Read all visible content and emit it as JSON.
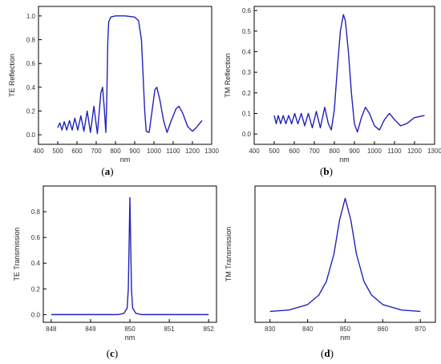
{
  "chart_data": [
    {
      "type": "line",
      "panel_label": "(a)",
      "xlabel": "nm",
      "ylabel": "TE Reflection",
      "xlim": [
        400,
        1300
      ],
      "ylim": [
        -0.08,
        1.08
      ],
      "xticks": [
        400,
        500,
        600,
        700,
        800,
        900,
        1000,
        1100,
        1200,
        1300
      ],
      "yticks": [
        0.0,
        0.2,
        0.4,
        0.6,
        0.8,
        1.0
      ],
      "ytick_labels": [
        "0.0",
        "0.2",
        "0.4",
        "0.6",
        "0.8",
        "1.0"
      ],
      "series": [
        {
          "color": "#2222bb",
          "points": [
            [
              500,
              0.06
            ],
            [
              511,
              0.1
            ],
            [
              522,
              0.04
            ],
            [
              534,
              0.11
            ],
            [
              547,
              0.04
            ],
            [
              561,
              0.12
            ],
            [
              575,
              0.04
            ],
            [
              589,
              0.14
            ],
            [
              604,
              0.04
            ],
            [
              620,
              0.16
            ],
            [
              636,
              0.03
            ],
            [
              653,
              0.2
            ],
            [
              670,
              0.02
            ],
            [
              688,
              0.24
            ],
            [
              706,
              0.01
            ],
            [
              724,
              0.35
            ],
            [
              733,
              0.4
            ],
            [
              742,
              0.22
            ],
            [
              750,
              0.02
            ],
            [
              755,
              0.3
            ],
            [
              760,
              0.78
            ],
            [
              765,
              0.95
            ],
            [
              775,
              0.99
            ],
            [
              800,
              1.0
            ],
            [
              850,
              1.0
            ],
            [
              900,
              0.99
            ],
            [
              920,
              0.96
            ],
            [
              935,
              0.8
            ],
            [
              945,
              0.45
            ],
            [
              952,
              0.2
            ],
            [
              960,
              0.03
            ],
            [
              975,
              0.02
            ],
            [
              990,
              0.2
            ],
            [
              1005,
              0.38
            ],
            [
              1015,
              0.4
            ],
            [
              1030,
              0.3
            ],
            [
              1050,
              0.12
            ],
            [
              1068,
              0.02
            ],
            [
              1090,
              0.12
            ],
            [
              1115,
              0.22
            ],
            [
              1130,
              0.24
            ],
            [
              1150,
              0.18
            ],
            [
              1175,
              0.07
            ],
            [
              1200,
              0.03
            ],
            [
              1220,
              0.06
            ],
            [
              1250,
              0.12
            ]
          ]
        }
      ]
    },
    {
      "type": "line",
      "panel_label": "(b)",
      "xlabel": "nm",
      "ylabel": "TM Reflection",
      "xlim": [
        400,
        1300
      ],
      "ylim": [
        -0.05,
        0.62
      ],
      "xticks": [
        400,
        500,
        600,
        700,
        800,
        900,
        1000,
        1100,
        1200,
        1300
      ],
      "yticks": [
        0.0,
        0.1,
        0.2,
        0.3,
        0.4,
        0.5,
        0.6
      ],
      "ytick_labels": [
        "0.0",
        "0.1",
        "0.2",
        "0.3",
        "0.4",
        "0.5",
        "0.6"
      ],
      "series": [
        {
          "color": "#2222bb",
          "points": [
            [
              500,
              0.09
            ],
            [
              510,
              0.05
            ],
            [
              520,
              0.09
            ],
            [
              532,
              0.05
            ],
            [
              545,
              0.09
            ],
            [
              558,
              0.05
            ],
            [
              572,
              0.09
            ],
            [
              587,
              0.05
            ],
            [
              602,
              0.1
            ],
            [
              618,
              0.05
            ],
            [
              635,
              0.1
            ],
            [
              652,
              0.04
            ],
            [
              670,
              0.1
            ],
            [
              690,
              0.03
            ],
            [
              710,
              0.11
            ],
            [
              730,
              0.03
            ],
            [
              752,
              0.13
            ],
            [
              770,
              0.05
            ],
            [
              785,
              0.02
            ],
            [
              800,
              0.12
            ],
            [
              815,
              0.32
            ],
            [
              830,
              0.5
            ],
            [
              845,
              0.58
            ],
            [
              855,
              0.55
            ],
            [
              870,
              0.4
            ],
            [
              885,
              0.2
            ],
            [
              900,
              0.05
            ],
            [
              915,
              0.01
            ],
            [
              935,
              0.08
            ],
            [
              955,
              0.13
            ],
            [
              975,
              0.1
            ],
            [
              1000,
              0.04
            ],
            [
              1025,
              0.02
            ],
            [
              1050,
              0.07
            ],
            [
              1075,
              0.1
            ],
            [
              1100,
              0.07
            ],
            [
              1130,
              0.04
            ],
            [
              1160,
              0.05
            ],
            [
              1200,
              0.08
            ],
            [
              1250,
              0.09
            ]
          ]
        }
      ]
    },
    {
      "type": "line",
      "panel_label": "(c)",
      "xlabel": "nm",
      "ylabel": "TE Transmission",
      "xlim": [
        847.8,
        852.2
      ],
      "ylim": [
        -0.06,
        1.0
      ],
      "xticks": [
        848,
        849,
        850,
        851,
        852
      ],
      "yticks": [
        0.0,
        0.2,
        0.4,
        0.6,
        0.8
      ],
      "ytick_labels": [
        "0.0",
        "0.2",
        "0.4",
        "0.6",
        "0.8"
      ],
      "series": [
        {
          "color": "#2222bb",
          "points": [
            [
              848.0,
              0.0
            ],
            [
              849.7,
              0.0
            ],
            [
              849.85,
              0.01
            ],
            [
              849.93,
              0.05
            ],
            [
              849.96,
              0.2
            ],
            [
              849.98,
              0.55
            ],
            [
              850.0,
              0.91
            ],
            [
              850.02,
              0.55
            ],
            [
              850.04,
              0.2
            ],
            [
              850.07,
              0.05
            ],
            [
              850.15,
              0.01
            ],
            [
              850.3,
              0.0
            ],
            [
              852.0,
              0.0
            ]
          ]
        }
      ]
    },
    {
      "type": "line",
      "panel_label": "(d)",
      "xlabel": "nm",
      "ylabel": "TM Transmission",
      "xlim": [
        826,
        874
      ],
      "ylim": [
        0.0,
        1.0
      ],
      "xticks": [
        830,
        840,
        850,
        860,
        870
      ],
      "yticks": [],
      "ytick_labels": [],
      "series": [
        {
          "color": "#2222bb",
          "points": [
            [
              830,
              0.08
            ],
            [
              835,
              0.09
            ],
            [
              840,
              0.13
            ],
            [
              843,
              0.2
            ],
            [
              845,
              0.3
            ],
            [
              847,
              0.5
            ],
            [
              848.5,
              0.75
            ],
            [
              850,
              0.91
            ],
            [
              851.5,
              0.75
            ],
            [
              853,
              0.5
            ],
            [
              855,
              0.3
            ],
            [
              857,
              0.2
            ],
            [
              860,
              0.13
            ],
            [
              865,
              0.09
            ],
            [
              870,
              0.08
            ]
          ]
        }
      ]
    }
  ]
}
